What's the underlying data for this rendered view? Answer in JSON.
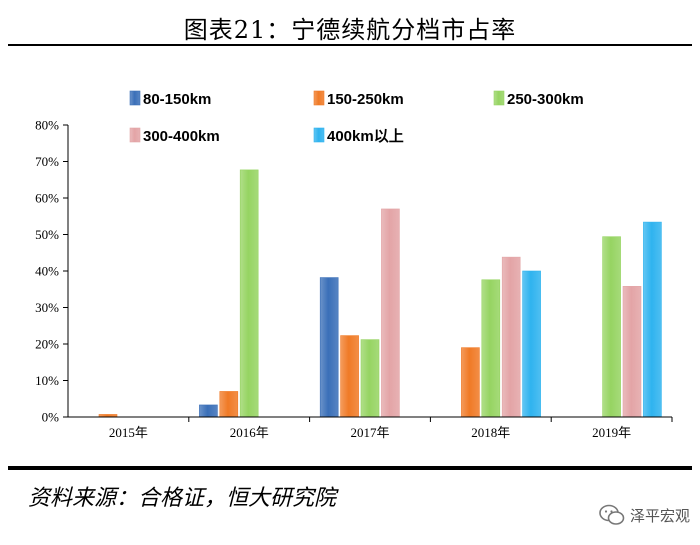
{
  "header": {
    "title": "图表21：宁德续航分档市占率"
  },
  "footer": {
    "source": "资料来源：合格证，恒大研究院",
    "watermark": "泽平宏观"
  },
  "colors": {
    "80-150km": "#3a6fb8",
    "150-250km": "#f07a26",
    "250-300km": "#96d462",
    "300-400km": "#e3a4a6",
    "400km以上": "#2fb3ef"
  },
  "chart_data": {
    "type": "bar",
    "categories": [
      "2015年",
      "2016年",
      "2017年",
      "2018年",
      "2019年"
    ],
    "series": [
      {
        "name": "80-150km",
        "values": [
          0,
          3.3,
          38.2,
          0,
          0
        ]
      },
      {
        "name": "150-250km",
        "values": [
          0.7,
          7,
          22.3,
          19,
          0
        ]
      },
      {
        "name": "250-300km",
        "values": [
          0,
          67.7,
          21.2,
          37.6,
          49.4
        ]
      },
      {
        "name": "300-400km",
        "values": [
          0,
          0,
          57,
          43.8,
          35.8
        ]
      },
      {
        "name": "400km以上",
        "values": [
          0,
          0,
          0,
          40,
          53.4
        ]
      }
    ],
    "yticks": [
      "0%",
      "10%",
      "20%",
      "30%",
      "40%",
      "50%",
      "60%",
      "70%",
      "80%"
    ],
    "ylim": [
      0,
      80
    ],
    "legend_position": "top",
    "grid": false
  }
}
